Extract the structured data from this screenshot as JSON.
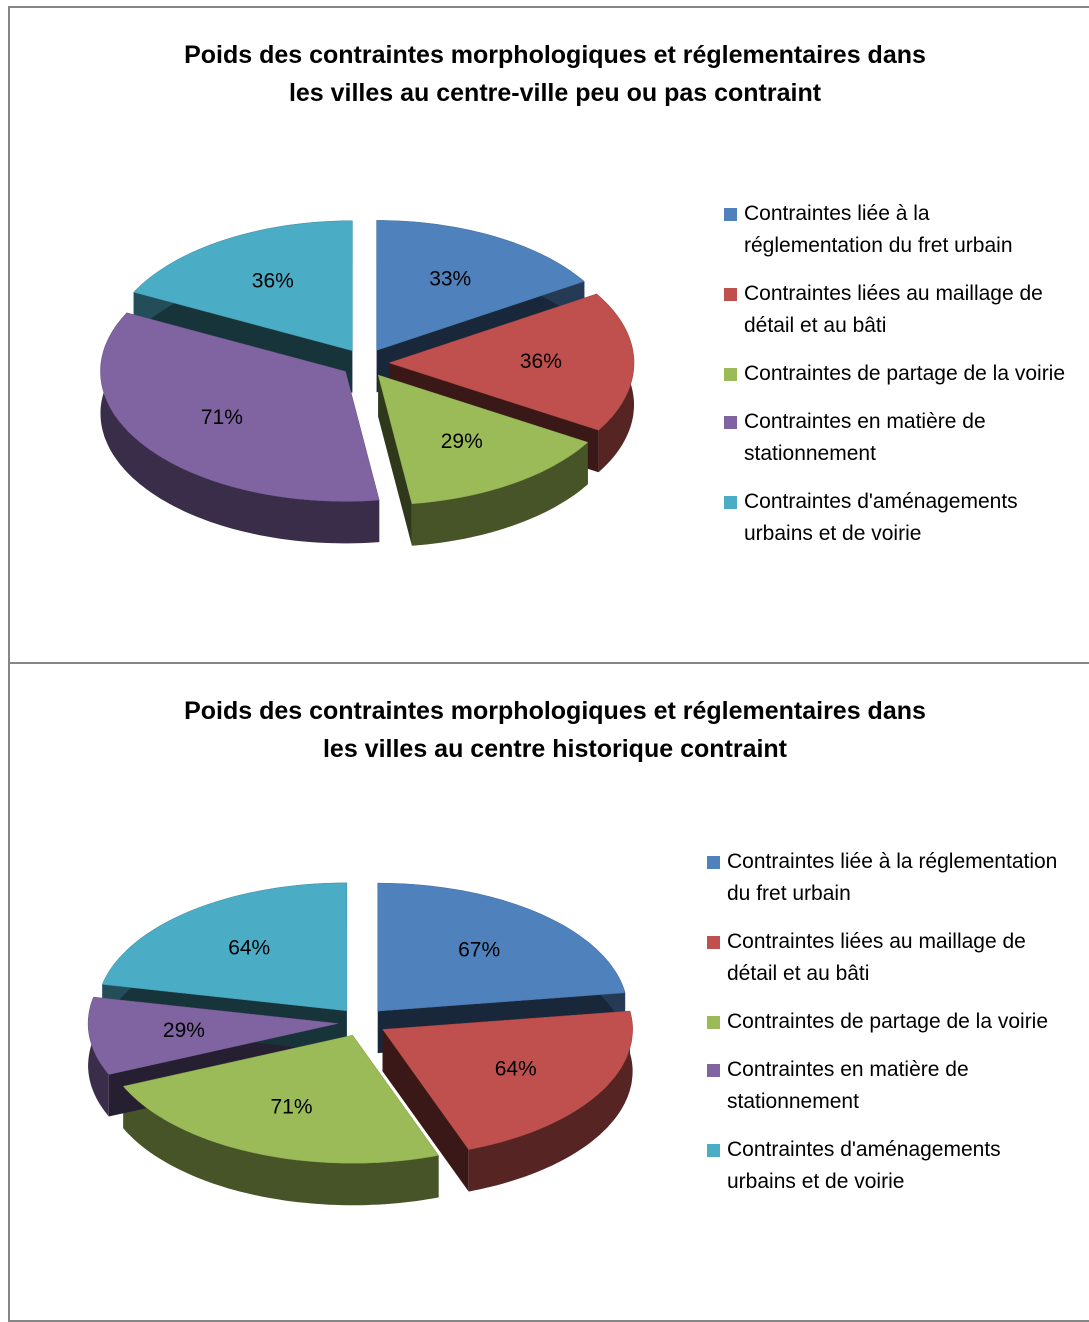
{
  "chart_data": [
    {
      "type": "pie3d",
      "title": [
        "Poids des contraintes morphologiques  et réglementaires dans",
        "les villes au centre-ville peu ou pas contraint"
      ],
      "categories": [
        "Contraintes liée à la réglementation du fret urbain",
        "Contraintes liées au maillage de détail et au bâti",
        "Contraintes de partage de la voirie",
        "Contraintes en matière de stationnement",
        "Contraintes d'aménagements urbains et de voirie"
      ],
      "values": [
        33,
        36,
        29,
        71,
        36
      ],
      "value_labels": [
        "33%",
        "36%",
        "29%",
        "71%",
        "36%"
      ],
      "colors": [
        "#4f81bd",
        "#c0504d",
        "#9bbb59",
        "#8064a2",
        "#4bacc6"
      ],
      "legend": "right"
    },
    {
      "type": "pie3d",
      "title": [
        "Poids des contraintes morphologiques  et réglementaires dans",
        "les villes au centre historique contraint"
      ],
      "categories": [
        "Contraintes liée à la réglementation du fret urbain",
        "Contraintes liées au maillage de détail et au bâti",
        "Contraintes de partage de la voirie",
        "Contraintes en matière de stationnement",
        "Contraintes d'aménagements urbains et de voirie"
      ],
      "values": [
        67,
        64,
        71,
        29,
        64
      ],
      "value_labels": [
        "67%",
        "64%",
        "71%",
        "29%",
        "64%"
      ],
      "colors": [
        "#4f81bd",
        "#c0504d",
        "#9bbb59",
        "#8064a2",
        "#4bacc6"
      ],
      "legend": "right"
    }
  ]
}
